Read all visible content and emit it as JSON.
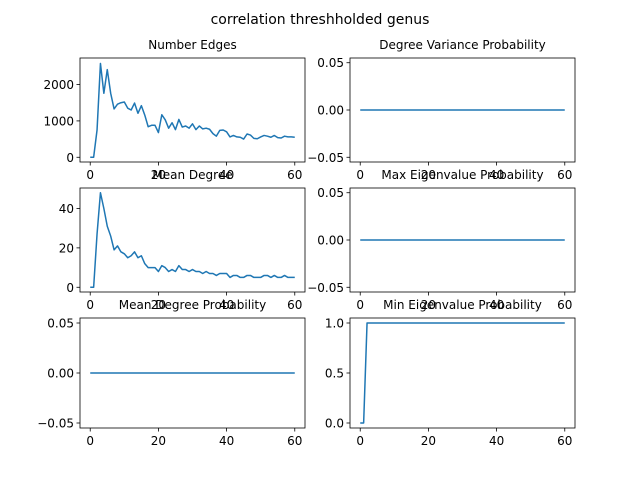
{
  "suptitle": "correlation threshholded  genus",
  "colors": {
    "series": "#1f77b4"
  },
  "chart_data": [
    {
      "type": "line",
      "title": "Number Edges",
      "xlim": [
        -3,
        63
      ],
      "ylim": [
        -130,
        2730
      ],
      "xticks": [
        0,
        20,
        40,
        60
      ],
      "yticks": [
        0,
        1000,
        2000
      ],
      "x": [
        0,
        1,
        2,
        3,
        4,
        5,
        6,
        7,
        8,
        9,
        10,
        11,
        12,
        13,
        14,
        15,
        16,
        17,
        18,
        19,
        20,
        21,
        22,
        23,
        24,
        25,
        26,
        27,
        28,
        29,
        30,
        31,
        32,
        33,
        34,
        35,
        36,
        37,
        38,
        39,
        40,
        41,
        42,
        43,
        44,
        45,
        46,
        47,
        48,
        49,
        50,
        51,
        52,
        53,
        54,
        55,
        56,
        57,
        58,
        59,
        60
      ],
      "y": [
        0,
        0,
        750,
        2580,
        1760,
        2410,
        1760,
        1330,
        1460,
        1500,
        1520,
        1350,
        1300,
        1490,
        1210,
        1420,
        1160,
        840,
        880,
        880,
        680,
        1170,
        1030,
        800,
        950,
        760,
        1040,
        830,
        860,
        800,
        920,
        760,
        860,
        780,
        800,
        770,
        650,
        580,
        740,
        750,
        700,
        560,
        600,
        560,
        550,
        500,
        640,
        610,
        520,
        510,
        560,
        600,
        580,
        550,
        600,
        540,
        530,
        580,
        560,
        560,
        550
      ]
    },
    {
      "type": "line",
      "title": "Degree Variance Probability",
      "xlim": [
        -3,
        63
      ],
      "ylim": [
        -0.055,
        0.055
      ],
      "xticks": [
        0,
        20,
        40,
        60
      ],
      "yticks": [
        -0.05,
        0.0,
        0.05
      ],
      "ytick_labels": [
        "−0.05",
        "0.00",
        "0.05"
      ],
      "x": [
        0,
        60
      ],
      "y": [
        0,
        0
      ]
    },
    {
      "type": "line",
      "title": "Mean Degree",
      "xlim": [
        -3,
        63
      ],
      "ylim": [
        -2.4,
        50.4
      ],
      "xticks": [
        0,
        20,
        40,
        60
      ],
      "yticks": [
        0,
        20,
        40
      ],
      "x": [
        0,
        1,
        2,
        3,
        4,
        5,
        6,
        7,
        8,
        9,
        10,
        11,
        12,
        13,
        14,
        15,
        16,
        17,
        18,
        19,
        20,
        21,
        22,
        23,
        24,
        25,
        26,
        27,
        28,
        29,
        30,
        31,
        32,
        33,
        34,
        35,
        36,
        37,
        38,
        39,
        40,
        41,
        42,
        43,
        44,
        45,
        46,
        47,
        48,
        49,
        50,
        51,
        52,
        53,
        54,
        55,
        56,
        57,
        58,
        59,
        60
      ],
      "y": [
        0,
        0,
        27,
        48,
        40,
        31,
        26,
        19,
        21,
        18,
        17,
        15,
        16,
        18,
        15,
        16,
        12,
        10,
        10,
        10,
        8,
        11,
        10,
        8,
        9,
        8,
        11,
        9,
        9,
        8,
        9,
        8,
        8,
        7,
        8,
        7,
        7,
        6,
        7,
        7,
        7,
        5,
        6,
        6,
        5,
        5,
        6,
        6,
        5,
        5,
        5,
        6,
        6,
        5,
        6,
        5,
        5,
        6,
        5,
        5,
        5
      ]
    },
    {
      "type": "line",
      "title": "Max Eigenvalue Probability",
      "xlim": [
        -3,
        63
      ],
      "ylim": [
        -0.055,
        0.055
      ],
      "xticks": [
        0,
        20,
        40,
        60
      ],
      "yticks": [
        -0.05,
        0.0,
        0.05
      ],
      "ytick_labels": [
        "−0.05",
        "0.00",
        "0.05"
      ],
      "x": [
        0,
        60
      ],
      "y": [
        0,
        0
      ]
    },
    {
      "type": "line",
      "title": "Mean Degree Probability",
      "xlim": [
        -3,
        63
      ],
      "ylim": [
        -0.055,
        0.055
      ],
      "xticks": [
        0,
        20,
        40,
        60
      ],
      "yticks": [
        -0.05,
        0.0,
        0.05
      ],
      "ytick_labels": [
        "−0.05",
        "0.00",
        "0.05"
      ],
      "x": [
        0,
        60
      ],
      "y": [
        0,
        0
      ]
    },
    {
      "type": "line",
      "title": "Min Eigenvalue Probability",
      "xlim": [
        -3,
        63
      ],
      "ylim": [
        -0.05,
        1.05
      ],
      "xticks": [
        0,
        20,
        40,
        60
      ],
      "yticks": [
        0.0,
        0.5,
        1.0
      ],
      "ytick_labels": [
        "0.0",
        "0.5",
        "1.0"
      ],
      "x": [
        0,
        1,
        2,
        60
      ],
      "y": [
        0,
        0,
        1,
        1
      ]
    }
  ]
}
